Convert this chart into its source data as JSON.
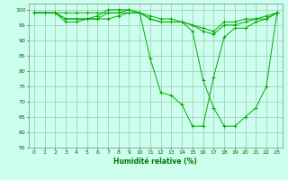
{
  "title": "",
  "xlabel": "Humidité relative (%)",
  "ylabel": "",
  "background_color": "#ccffee",
  "grid_color": "#aaccbb",
  "line_color": "#00aa00",
  "marker_color": "#00aa00",
  "xlim": [
    -0.5,
    23.5
  ],
  "ylim": [
    55,
    102
  ],
  "yticks": [
    55,
    60,
    65,
    70,
    75,
    80,
    85,
    90,
    95,
    100
  ],
  "xticks": [
    0,
    1,
    2,
    3,
    4,
    5,
    6,
    7,
    8,
    9,
    10,
    11,
    12,
    13,
    14,
    15,
    16,
    17,
    18,
    19,
    20,
    21,
    22,
    23
  ],
  "series": [
    [
      99,
      99,
      99,
      99,
      99,
      99,
      99,
      99,
      99,
      99,
      99,
      98,
      97,
      97,
      96,
      95,
      94,
      93,
      96,
      96,
      97,
      97,
      98,
      99
    ],
    [
      99,
      99,
      99,
      97,
      97,
      97,
      97,
      97,
      98,
      99,
      99,
      97,
      96,
      96,
      96,
      95,
      93,
      92,
      95,
      95,
      96,
      97,
      97,
      99
    ],
    [
      99,
      99,
      99,
      96,
      96,
      97,
      97,
      99,
      99,
      100,
      99,
      84,
      73,
      72,
      69,
      62,
      62,
      78,
      91,
      94,
      94,
      96,
      97,
      99
    ],
    [
      99,
      99,
      99,
      97,
      97,
      97,
      98,
      100,
      100,
      100,
      99,
      97,
      96,
      96,
      96,
      93,
      77,
      68,
      62,
      62,
      65,
      68,
      75,
      99
    ]
  ]
}
